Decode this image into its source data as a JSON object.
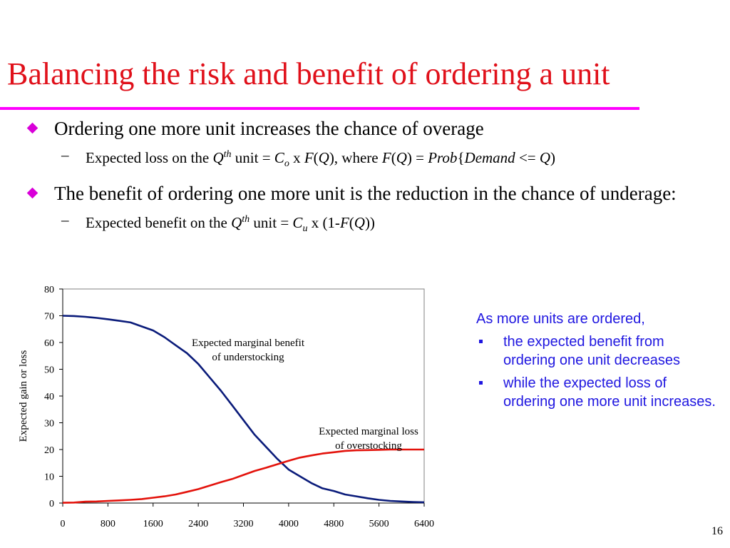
{
  "colors": {
    "title": "#e0101a",
    "rule": "#ff00ff",
    "bullet": "#d900d9",
    "side_text": "#1f16e0",
    "benefit_curve": "#0a1b7a",
    "loss_curve": "#e3120b",
    "axis": "#000000"
  },
  "slide": {
    "title": "Balancing the risk and benefit of ordering a unit",
    "page_number": "16"
  },
  "bullets": [
    {
      "text": "Ordering one more unit increases the chance of overage",
      "sub": {
        "p1": "Expected loss on the ",
        "q": "Q",
        "th": "th",
        "p2": " unit = ",
        "c": "C",
        "o": "o",
        "p3": " x ",
        "f": "F",
        "p4": "(",
        "q2": "Q",
        "p5": "), where ",
        "f2": "F",
        "p6": "(",
        "q3": "Q",
        "p7": ") = ",
        "prob": "Prob",
        "p8": "{",
        "demand": "Demand",
        "p9": " <= ",
        "q4": "Q",
        "p10": ")"
      }
    },
    {
      "text": "The benefit of ordering one more unit is the reduction in the chance of underage:",
      "sub": {
        "p1": "Expected benefit on the ",
        "q": "Q",
        "th": "th",
        "p2": " unit = ",
        "c": "C",
        "u": "u",
        "p3": " x (1-",
        "f": "F",
        "p4": "(",
        "q2": "Q",
        "p5": "))"
      }
    }
  ],
  "side_note": {
    "lead": "As more units are ordered,",
    "items": [
      "the expected benefit from ordering one unit decreases",
      "while the expected loss of ordering one more unit increases."
    ]
  },
  "chart_data": {
    "type": "line",
    "title": "",
    "xlabel": "",
    "ylabel": "Expected gain or loss",
    "xlim": [
      0,
      6400
    ],
    "ylim": [
      0,
      80
    ],
    "x_ticks": [
      "0",
      "800",
      "1600",
      "2400",
      "3200",
      "4000",
      "4800",
      "5600",
      "6400"
    ],
    "y_ticks": [
      "0",
      "10",
      "20",
      "30",
      "40",
      "50",
      "60",
      "70",
      "80"
    ],
    "grid": false,
    "series": [
      {
        "name": "Expected marginal benefit of understocking",
        "annotation": [
          "Expected marginal benefit",
          "of understocking"
        ],
        "x": [
          0,
          200,
          400,
          600,
          800,
          1000,
          1200,
          1400,
          1600,
          1800,
          2000,
          2200,
          2400,
          2600,
          2800,
          3000,
          3200,
          3400,
          3600,
          3800,
          4000,
          4200,
          4400,
          4600,
          4800,
          5000,
          5200,
          5400,
          5600,
          5800,
          6000,
          6200,
          6400
        ],
        "y": [
          70,
          69.9,
          69.6,
          69.2,
          68.7,
          68.1,
          67.5,
          66,
          64.5,
          62,
          59,
          56,
          52,
          47,
          42,
          36.5,
          31,
          25.5,
          21,
          16.5,
          12.5,
          10,
          7.5,
          5.5,
          4.5,
          3.2,
          2.5,
          1.8,
          1.2,
          0.8,
          0.6,
          0.4,
          0.3
        ]
      },
      {
        "name": "Expected marginal loss of overstocking",
        "annotation": [
          "Expected marginal loss",
          "of overstocking"
        ],
        "x": [
          0,
          200,
          400,
          600,
          800,
          1000,
          1200,
          1400,
          1600,
          1800,
          2000,
          2200,
          2400,
          2600,
          2800,
          3000,
          3200,
          3400,
          3600,
          3800,
          4000,
          4200,
          4400,
          4600,
          4800,
          5000,
          5200,
          5400,
          5600,
          5800,
          6000,
          6200,
          6400
        ],
        "y": [
          0.1,
          0.2,
          0.5,
          0.6,
          0.8,
          1.0,
          1.2,
          1.5,
          2.0,
          2.5,
          3.2,
          4.2,
          5.2,
          6.5,
          7.8,
          9.0,
          10.5,
          12.0,
          13.2,
          14.5,
          15.8,
          17.0,
          17.8,
          18.5,
          19.0,
          19.5,
          19.7,
          19.8,
          19.9,
          20.0,
          20.0,
          20.0,
          20.0
        ]
      }
    ]
  }
}
